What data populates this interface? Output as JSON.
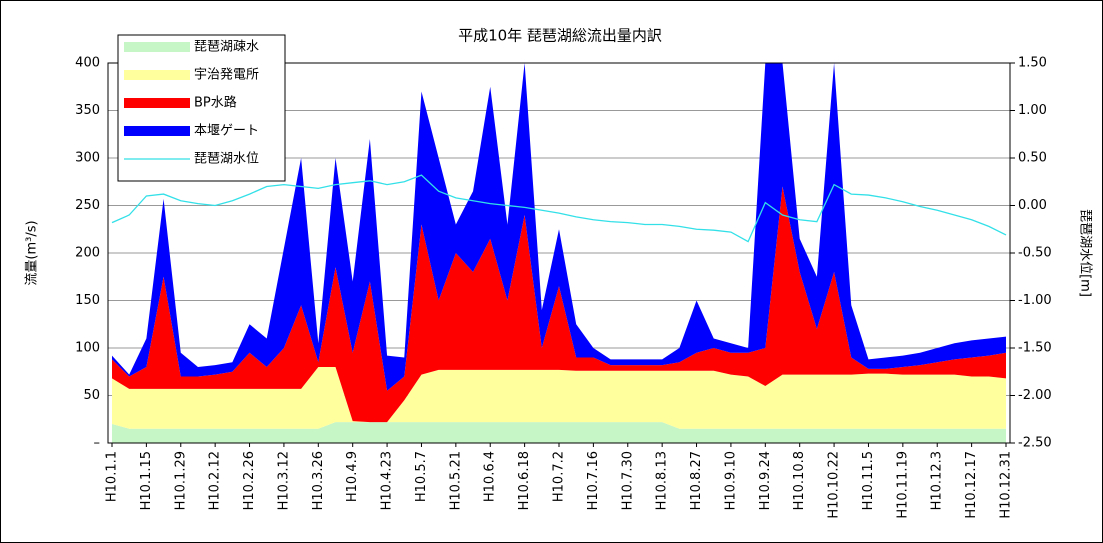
{
  "chart_data": {
    "type": "stacked_area",
    "title": "平成10年 琵琶湖総流出量内訳",
    "y_label": "流量(m³/s)",
    "y2_label": "琵琶湖水位[m]",
    "categories": [
      "H10.1.1",
      null,
      "H10.1.15",
      null,
      "H10.1.29",
      null,
      "H10.2.12",
      null,
      "H10.2.26",
      null,
      "H10.3.12",
      null,
      "H10.3.26",
      null,
      "H10.4.9",
      null,
      "H10.4.23",
      null,
      "H10.5.7",
      null,
      "H10.5.21",
      null,
      "H10.6.4",
      null,
      "H10.6.18",
      null,
      "H10.7.2",
      null,
      "H10.7.16",
      null,
      "H10.7.30",
      null,
      "H10.8.13",
      null,
      "H10.8.27",
      null,
      "H10.9.10",
      null,
      "H10.9.24",
      null,
      "H10.10.8",
      null,
      "H10.10.22",
      null,
      "H10.11.5",
      null,
      "H10.11.19",
      null,
      "H10.12.3",
      null,
      "H10.12.17",
      null,
      "H10.12.31"
    ],
    "series": [
      {
        "name": "琵琶湖疎水",
        "color": "#c6f5c6",
        "values": [
          20,
          15,
          15,
          15,
          15,
          15,
          15,
          15,
          15,
          15,
          15,
          15,
          15,
          22,
          22,
          22,
          22,
          22,
          22,
          22,
          22,
          22,
          22,
          22,
          22,
          22,
          22,
          22,
          22,
          22,
          22,
          22,
          22,
          15,
          15,
          15,
          15,
          15,
          15,
          15,
          15,
          15,
          15,
          15,
          15,
          15,
          15,
          15,
          15,
          15,
          15,
          15,
          15
        ]
      },
      {
        "name": "宇治発電所",
        "color": "#ffff9e",
        "values": [
          48,
          42,
          42,
          42,
          42,
          42,
          42,
          42,
          42,
          42,
          42,
          42,
          65,
          58,
          1,
          0,
          0,
          23,
          50,
          55,
          55,
          55,
          55,
          55,
          55,
          55,
          55,
          54,
          54,
          54,
          54,
          54,
          54,
          61,
          61,
          61,
          57,
          55,
          45,
          57,
          57,
          57,
          57,
          57,
          58,
          58,
          57,
          57,
          57,
          57,
          55,
          55,
          53
        ]
      },
      {
        "name": "BP水路",
        "color": "#ff0000",
        "values": [
          20,
          13,
          23,
          118,
          13,
          13,
          15,
          18,
          38,
          23,
          43,
          88,
          5,
          105,
          72,
          148,
          33,
          25,
          158,
          73,
          123,
          103,
          138,
          73,
          163,
          23,
          88,
          14,
          14,
          6,
          6,
          6,
          6,
          9,
          19,
          24,
          23,
          25,
          40,
          198,
          108,
          48,
          108,
          18,
          5,
          5,
          8,
          10,
          13,
          16,
          20,
          22,
          27
        ]
      },
      {
        "name": "本堰ゲート",
        "color": "#0000ff",
        "values": [
          4,
          2,
          30,
          82,
          25,
          10,
          10,
          10,
          30,
          30,
          105,
          155,
          20,
          115,
          75,
          150,
          37,
          20,
          140,
          150,
          30,
          85,
          160,
          80,
          160,
          40,
          60,
          35,
          10,
          6,
          6,
          6,
          6,
          15,
          55,
          10,
          10,
          5,
          300,
          130,
          35,
          55,
          220,
          55,
          10,
          12,
          12,
          13,
          15,
          17,
          18,
          18,
          17
        ]
      },
      {
        "name": "琵琶湖水位",
        "color": "#33e0e8",
        "axis": "y2",
        "values": [
          -0.18,
          -0.1,
          0.1,
          0.12,
          0.05,
          0.02,
          0.0,
          0.05,
          0.12,
          0.2,
          0.22,
          0.2,
          0.18,
          0.22,
          0.24,
          0.26,
          0.22,
          0.25,
          0.32,
          0.15,
          0.08,
          0.05,
          0.02,
          0.0,
          -0.02,
          -0.05,
          -0.08,
          -0.12,
          -0.15,
          -0.17,
          -0.18,
          -0.2,
          -0.2,
          -0.22,
          -0.25,
          -0.26,
          -0.28,
          -0.38,
          0.03,
          -0.1,
          -0.15,
          -0.17,
          0.22,
          0.12,
          0.11,
          0.08,
          0.04,
          -0.01,
          -0.05,
          -0.1,
          -0.15,
          -0.22,
          -0.31
        ]
      }
    ],
    "ylim": [
      0,
      400
    ],
    "yticks": [
      {
        "value": 0,
        "label": "–"
      },
      50,
      100,
      150,
      200,
      250,
      300,
      350,
      400
    ],
    "y2lim": [
      -2.5,
      1.5
    ],
    "y2ticks": [
      {
        "value": -2.5,
        "label": "-2.50"
      },
      {
        "value": -2,
        "label": "-2.00"
      },
      {
        "value": -1.5,
        "label": "-1.50"
      },
      {
        "value": -1,
        "label": "-1.00"
      },
      {
        "value": -0.5,
        "label": "-0.50"
      },
      {
        "value": 0,
        "label": "0.00"
      },
      {
        "value": 0.5,
        "label": "0.50"
      },
      {
        "value": 1,
        "label": "1.00"
      },
      {
        "value": 1.5,
        "label": "1.50"
      }
    ],
    "grid": true,
    "legend": "upper-left"
  }
}
